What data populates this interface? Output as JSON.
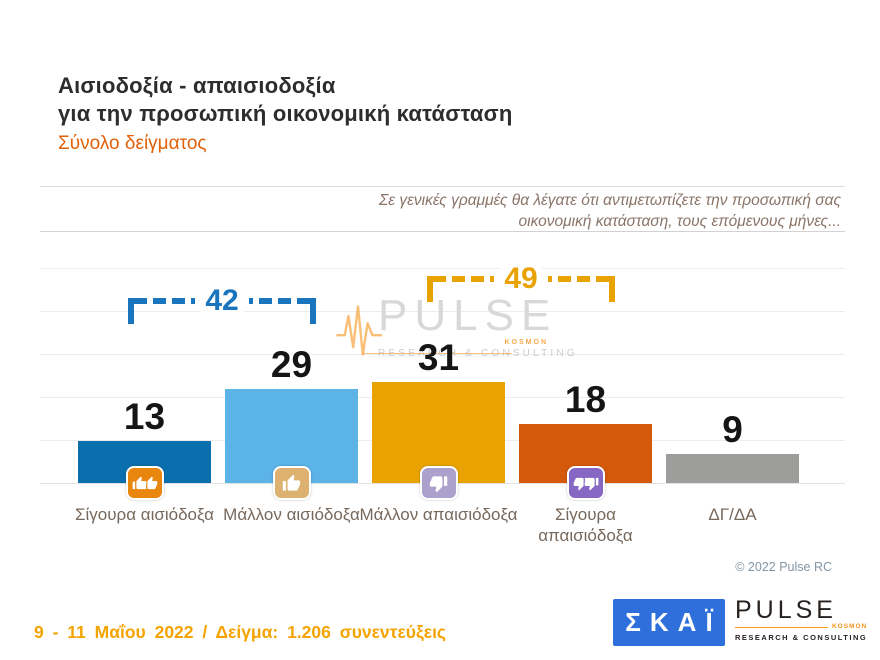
{
  "header": {
    "title_line1": "Αισιοδοξία - απαισιοδοξία",
    "title_line2": "για την προσωπική οικονομική κατάσταση",
    "subtitle": "Σύνολο δείγματος"
  },
  "question": {
    "line1": "Σε γενικές γραμμές θα λέγατε ότι αντιμετωπίζετε την προσωπική σας",
    "line2": "οικονομική κατάσταση, τους επόμενους μήνες..."
  },
  "chart_data": {
    "type": "bar",
    "title": "Αισιοδοξία - απαισιοδοξία για την προσωπική οικονομική κατάσταση (Σύνολο δείγματος)",
    "categories": [
      "Σίγουρα αισιόδοξα",
      "Μάλλον αισιόδοξα",
      "Μάλλον απαισιόδοξα",
      "Σίγουρα απαισιόδοξα",
      "ΔΓ/ΔΑ"
    ],
    "values": [
      13,
      29,
      31,
      18,
      9
    ],
    "bar_colors": [
      "#0b6fad",
      "#5cb4e6",
      "#e8a303",
      "#d4590b",
      "#9d9d9c"
    ],
    "icons": [
      "double-thumbs-up",
      "thumb-up",
      "thumb-down",
      "double-thumbs-down",
      null
    ],
    "icon_colors": [
      "#e8860d",
      "#ddb271",
      "#aca0cc",
      "#8667c3",
      null
    ],
    "ylim": [
      0,
      35
    ],
    "grid": true,
    "legend": null,
    "annotations": [
      {
        "label": "42",
        "value": 42,
        "spans_categories": [
          0,
          1
        ],
        "color": "#1b75bc"
      },
      {
        "label": "49",
        "value": 49,
        "spans_categories": [
          2,
          3
        ],
        "color": "#e8a303"
      }
    ]
  },
  "watermark": {
    "name": "PULSE",
    "sub": "RESEARCH & CONSULTING",
    "accent": "KOSMON"
  },
  "copyright": "© 2022 Pulse RC",
  "footer": {
    "date_sample": "9 - 11 Μαΐου 2022 / Δείγμα: 1.206 συνεντεύξεις"
  },
  "logos": {
    "skai": {
      "text": "ΣΚΑΪ",
      "bg": "#2f6fdb"
    },
    "pulse": {
      "name": "PULSE",
      "sub": "RESEARCH & CONSULTING",
      "accent": "KOSMON",
      "accent_color": "#f7941d"
    }
  }
}
